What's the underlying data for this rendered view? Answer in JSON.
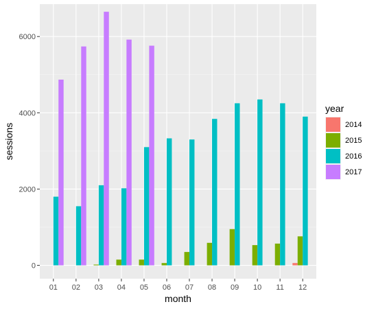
{
  "chart_data": {
    "type": "bar",
    "xlabel": "month",
    "ylabel": "sessions",
    "categories": [
      "01",
      "02",
      "03",
      "04",
      "05",
      "06",
      "07",
      "08",
      "09",
      "10",
      "11",
      "12"
    ],
    "ylim": [
      -350,
      6850
    ],
    "yticks": [
      0,
      2000,
      4000,
      6000
    ],
    "ytick_labels": [
      "0",
      "2000",
      "4000",
      "6000"
    ],
    "legend": {
      "title": "year",
      "placement": "right"
    },
    "background": "#ebebeb",
    "grid": true,
    "series": [
      {
        "name": "2014",
        "color": "#F8766D",
        "values": [
          null,
          null,
          null,
          null,
          null,
          null,
          null,
          null,
          null,
          null,
          null,
          60
        ]
      },
      {
        "name": "2015",
        "color": "#7CAE00",
        "values": [
          null,
          null,
          20,
          150,
          150,
          60,
          350,
          590,
          950,
          530,
          570,
          760
        ]
      },
      {
        "name": "2016",
        "color": "#00BFC4",
        "values": [
          1800,
          1550,
          2100,
          2020,
          3100,
          3330,
          3300,
          3840,
          4250,
          4350,
          4250,
          3900
        ]
      },
      {
        "name": "2017",
        "color": "#C77CFF",
        "values": [
          4870,
          5740,
          6650,
          5920,
          5760,
          null,
          null,
          null,
          null,
          null,
          null,
          null
        ]
      }
    ]
  }
}
